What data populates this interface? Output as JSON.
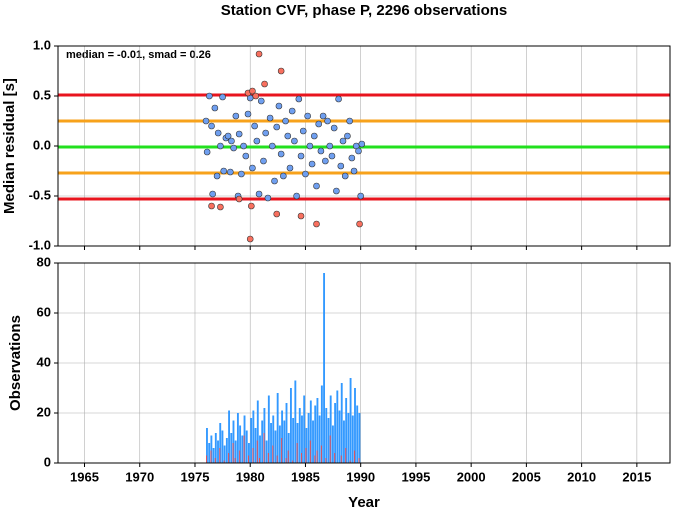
{
  "chart_data": [
    {
      "type": "scatter",
      "title": "Station CVF, phase P, 2296 observations",
      "annotation": "median = -0.01, smad = 0.26",
      "ylabel": "Median residual [s]",
      "xlim": [
        1962.6,
        2018
      ],
      "xticks": [
        1965,
        1970,
        1975,
        1980,
        1985,
        1990,
        1995,
        2000,
        2005,
        2010,
        2015
      ],
      "ylim": [
        -1.0,
        1.0
      ],
      "yticks": [
        {
          "value": -1.0,
          "label": "-1.0"
        },
        -0.5,
        {
          "value": 0.0,
          "label": "0.0"
        },
        0.5,
        {
          "value": 1.0,
          "label": "1.0"
        }
      ],
      "grid": true,
      "hlines": [
        {
          "value": 0.51,
          "color": "#e8141e"
        },
        {
          "value": 0.25,
          "color": "#f7a21b"
        },
        {
          "value": -0.01,
          "color": "#22e01e"
        },
        {
          "value": -0.27,
          "color": "#f7a21b"
        },
        {
          "value": -0.53,
          "color": "#e8141e"
        }
      ],
      "series": [
        {
          "color": "#6f9ff0",
          "x": [
            1976.0,
            1976.1,
            1976.3,
            1976.5,
            1976.6,
            1976.8,
            1977.0,
            1977.1,
            1977.3,
            1977.5,
            1977.6,
            1977.8,
            1978.0,
            1978.2,
            1978.3,
            1978.5,
            1978.7,
            1978.9,
            1979.0,
            1979.2,
            1979.4,
            1979.6,
            1979.8,
            1980.0,
            1980.2,
            1980.4,
            1980.6,
            1980.8,
            1981.0,
            1981.2,
            1981.4,
            1981.6,
            1981.8,
            1982.0,
            1982.2,
            1982.4,
            1982.6,
            1982.8,
            1983.0,
            1983.2,
            1983.4,
            1983.6,
            1983.8,
            1984.0,
            1984.2,
            1984.4,
            1984.6,
            1984.8,
            1985.0,
            1985.2,
            1985.4,
            1985.6,
            1985.8,
            1986.0,
            1986.2,
            1986.4,
            1986.6,
            1986.8,
            1987.0,
            1987.2,
            1987.4,
            1987.6,
            1987.8,
            1988.0,
            1988.2,
            1988.4,
            1988.6,
            1988.8,
            1989.0,
            1989.2,
            1989.4,
            1989.6,
            1989.8,
            1990.0,
            1990.1
          ],
          "values": [
            0.25,
            -0.06,
            0.5,
            0.2,
            -0.48,
            0.38,
            -0.3,
            0.13,
            0.0,
            0.49,
            -0.25,
            0.08,
            0.1,
            -0.26,
            0.05,
            -0.02,
            0.3,
            -0.5,
            0.12,
            -0.28,
            0.0,
            -0.1,
            0.32,
            0.48,
            -0.22,
            0.2,
            0.05,
            -0.48,
            0.45,
            -0.15,
            0.13,
            -0.52,
            0.28,
            0.0,
            -0.35,
            0.19,
            0.4,
            -0.08,
            -0.3,
            0.25,
            0.1,
            -0.22,
            0.35,
            0.05,
            -0.5,
            0.47,
            -0.1,
            0.15,
            -0.28,
            0.3,
            0.0,
            -0.18,
            0.1,
            -0.4,
            0.22,
            -0.05,
            0.3,
            -0.15,
            0.25,
            0.0,
            -0.1,
            0.18,
            -0.45,
            0.47,
            -0.2,
            0.05,
            -0.3,
            0.1,
            0.25,
            -0.12,
            -0.25,
            0.0,
            -0.05,
            -0.5,
            0.02
          ]
        },
        {
          "color": "#f8705f",
          "x": [
            1976.5,
            1977.3,
            1979.0,
            1979.8,
            1980.0,
            1980.1,
            1980.2,
            1980.5,
            1980.8,
            1981.3,
            1982.4,
            1982.8,
            1984.6,
            1986.0,
            1989.9
          ],
          "values": [
            -0.6,
            -0.61,
            -0.53,
            0.53,
            -0.93,
            -0.6,
            0.55,
            0.5,
            0.92,
            0.62,
            -0.68,
            0.75,
            -0.7,
            -0.78,
            -0.78
          ]
        }
      ]
    },
    {
      "type": "histogram",
      "xlabel": "Year",
      "ylabel": "Observations",
      "xlim": [
        1962.6,
        2018
      ],
      "xticks": [
        1965,
        1970,
        1975,
        1980,
        1985,
        1990,
        1995,
        2000,
        2005,
        2010,
        2015
      ],
      "ylim": [
        0,
        80
      ],
      "yticks": [
        0,
        20,
        40,
        60,
        80
      ],
      "grid": true,
      "bins": [
        1976.0,
        1976.2,
        1976.4,
        1976.6,
        1976.8,
        1977.0,
        1977.2,
        1977.4,
        1977.6,
        1977.8,
        1978.0,
        1978.2,
        1978.4,
        1978.6,
        1978.8,
        1979.0,
        1979.2,
        1979.4,
        1979.6,
        1979.8,
        1980.0,
        1980.2,
        1980.4,
        1980.6,
        1980.8,
        1981.0,
        1981.2,
        1981.4,
        1981.6,
        1981.8,
        1982.0,
        1982.2,
        1982.4,
        1982.6,
        1982.8,
        1983.0,
        1983.2,
        1983.4,
        1983.6,
        1983.8,
        1984.0,
        1984.2,
        1984.4,
        1984.6,
        1984.8,
        1985.0,
        1985.2,
        1985.4,
        1985.6,
        1985.8,
        1986.0,
        1986.2,
        1986.4,
        1986.6,
        1986.8,
        1987.0,
        1987.2,
        1987.4,
        1987.6,
        1987.8,
        1988.0,
        1988.2,
        1988.4,
        1988.6,
        1988.8,
        1989.0,
        1989.2,
        1989.4,
        1989.6,
        1989.8,
        1990.0
      ],
      "series": [
        {
          "color": "#3399ff",
          "values": [
            14,
            8,
            11,
            6,
            12,
            9,
            16,
            13,
            7,
            10,
            21,
            12,
            17,
            9,
            20,
            15,
            11,
            19,
            13,
            8,
            18,
            21,
            14,
            25,
            11,
            17,
            22,
            9,
            27,
            16,
            19,
            13,
            28,
            15,
            21,
            17,
            24,
            12,
            30,
            18,
            33,
            16,
            22,
            19,
            27,
            14,
            20,
            25,
            17,
            23,
            26,
            19,
            31,
            76,
            22,
            18,
            27,
            15,
            24,
            29,
            21,
            32,
            17,
            26,
            20,
            34,
            19,
            30,
            23,
            20
          ]
        },
        {
          "color": "#e0505a",
          "values": [
            3,
            0,
            5,
            0,
            2,
            0,
            6,
            0,
            1,
            0,
            4,
            0,
            8,
            2,
            0,
            5,
            0,
            11,
            0,
            3,
            0,
            6,
            0,
            9,
            2,
            0,
            12,
            0,
            4,
            0,
            7,
            0,
            3,
            0,
            10,
            0,
            2,
            5,
            0,
            1,
            0,
            8,
            0,
            4,
            0,
            6,
            0,
            9,
            0,
            3,
            5,
            0,
            7,
            0,
            2,
            0,
            11,
            0,
            4,
            0,
            0,
            3,
            0,
            6,
            0,
            1,
            0,
            5,
            0,
            2
          ]
        }
      ]
    }
  ]
}
